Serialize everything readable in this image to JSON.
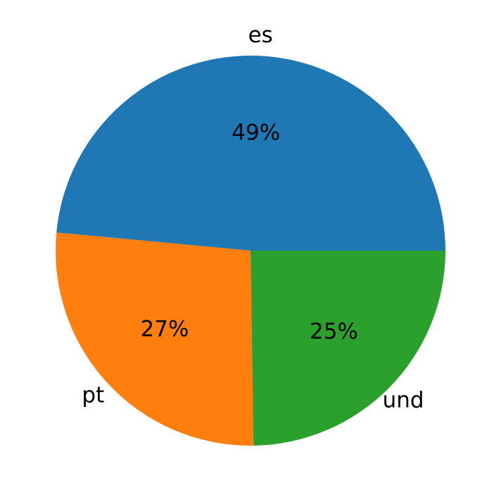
{
  "chart_data": {
    "type": "pie",
    "categories": [
      "es",
      "pt",
      "und"
    ],
    "values": [
      49,
      27,
      25
    ],
    "value_labels": [
      "49%",
      "27%",
      "25%"
    ],
    "colors": [
      "#1f77b4",
      "#ff7f0e",
      "#2ca02c"
    ]
  }
}
